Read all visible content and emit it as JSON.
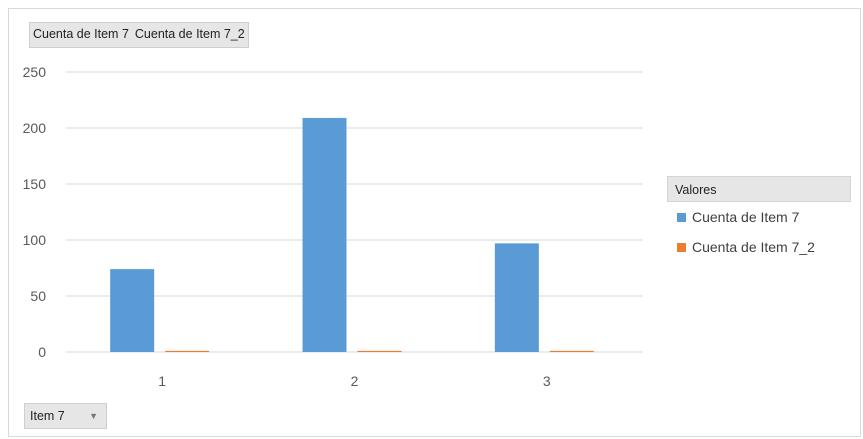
{
  "field_buttons": [
    "Cuenta de Item 7",
    "Cuenta de Item 7_2"
  ],
  "axis_field": {
    "label": "Item 7"
  },
  "legend": {
    "title": "Valores",
    "items": [
      {
        "label": "Cuenta de Item 7",
        "color": "#5b9bd5"
      },
      {
        "label": "Cuenta de Item 7_2",
        "color": "#ed7d31"
      }
    ]
  },
  "chart_data": {
    "type": "bar",
    "categories": [
      "1",
      "2",
      "3"
    ],
    "series": [
      {
        "name": "Cuenta de Item 7",
        "values": [
          74,
          209,
          97
        ],
        "color": "#5b9bd5"
      },
      {
        "name": "Cuenta de Item 7_2",
        "values": [
          1,
          1,
          1
        ],
        "color": "#ed7d31"
      }
    ],
    "yticks": [
      0,
      50,
      100,
      150,
      200,
      250
    ],
    "ylim": [
      0,
      250
    ],
    "grid": true,
    "legend_position": "right"
  }
}
